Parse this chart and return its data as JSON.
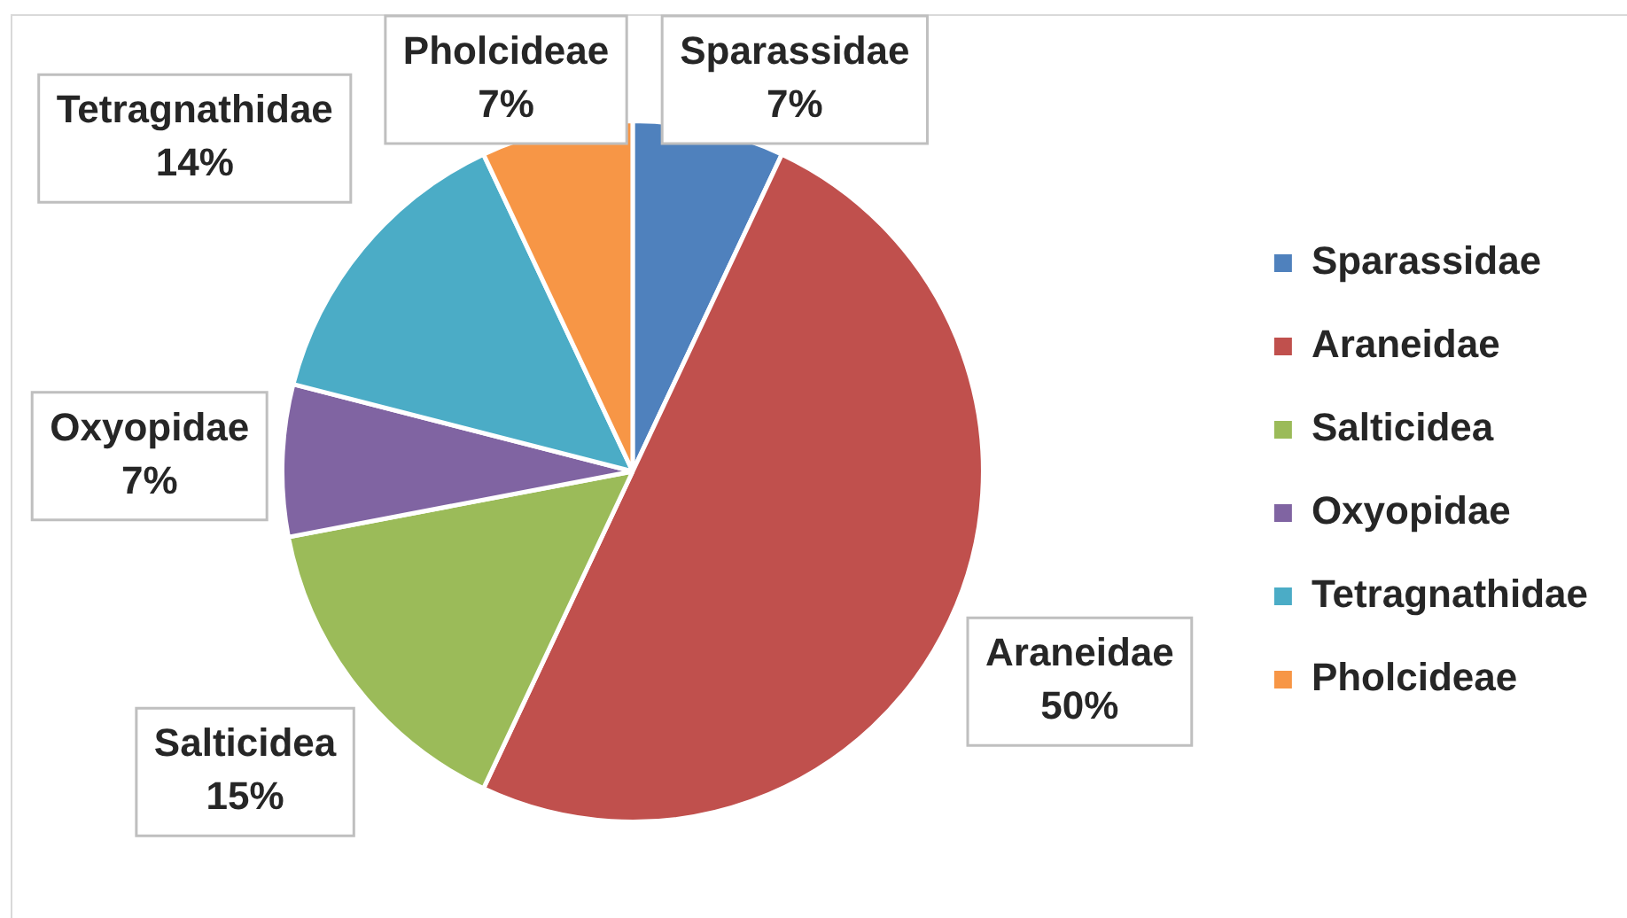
{
  "chart_data": {
    "type": "pie",
    "categories": [
      "Sparassidae",
      "Araneidae",
      "Salticidea",
      "Oxyopidae",
      "Tetragnathidae",
      "Pholcideae"
    ],
    "values": [
      7,
      50,
      15,
      7,
      14,
      7
    ],
    "colors": [
      "#4f81bd",
      "#c0504d",
      "#9bbb59",
      "#8064a2",
      "#4bacc6",
      "#f79646"
    ],
    "value_labels": [
      "7%",
      "50%",
      "15%",
      "7%",
      "14%",
      "7%"
    ],
    "legend": "right"
  }
}
